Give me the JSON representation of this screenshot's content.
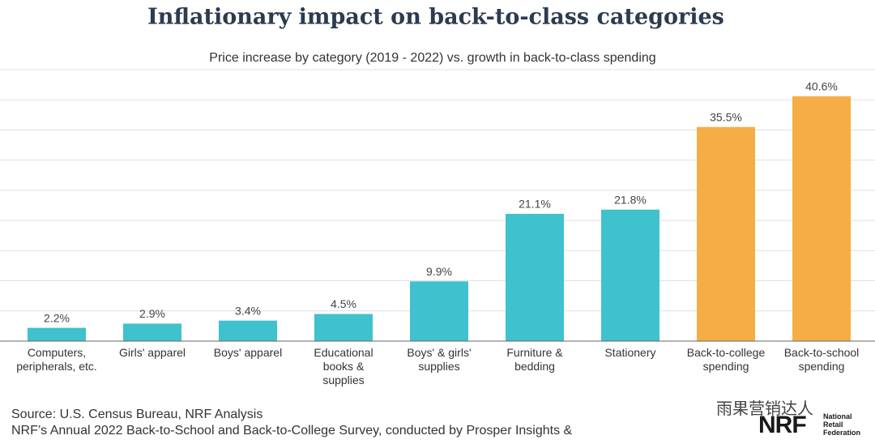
{
  "chart_data": {
    "type": "bar",
    "title": "Inflationary impact on back-to-class categories",
    "subtitle": "Price increase by category (2019 - 2022) vs. growth in back-to-class spending",
    "categories": [
      "Computers,\nperipherals, etc.",
      "Girls' apparel",
      "Boys' apparel",
      "Educational\nbooks &\nsupplies",
      "Boys' & girls'\nsupplies",
      "Furniture &\nbedding",
      "Stationery",
      "Back-to-college\nspending",
      "Back-to-school\nspending"
    ],
    "values": [
      2.2,
      2.9,
      3.4,
      4.5,
      9.9,
      21.1,
      21.8,
      35.5,
      40.6
    ],
    "value_labels": [
      "2.2%",
      "2.9%",
      "3.4%",
      "4.5%",
      "9.9%",
      "21.1%",
      "21.8%",
      "35.5%",
      "40.6%"
    ],
    "colors": [
      "#3fc1ce",
      "#3fc1ce",
      "#3fc1ce",
      "#3fc1ce",
      "#3fc1ce",
      "#3fc1ce",
      "#3fc1ce",
      "#f7ad45",
      "#f7ad45"
    ],
    "ylim": [
      0,
      45
    ],
    "yticks": [
      0,
      5,
      10,
      15,
      20,
      25,
      30,
      35,
      40,
      45
    ],
    "grid": true
  },
  "footer": {
    "sources": [
      "Source: U.S. Census Bureau, NRF Analysis",
      "NRF’s Annual 2022 Back-to-School and Back-to-College Survey, conducted by Prosper Insights &"
    ],
    "logo": "NRF",
    "logo_subtitle": "National\nRetail\nFederation",
    "watermark": "雨果营销达人"
  }
}
